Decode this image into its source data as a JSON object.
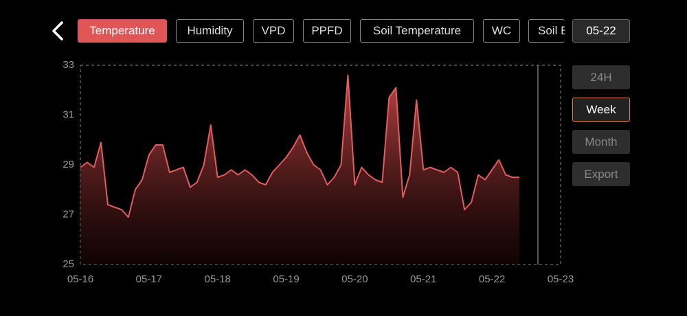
{
  "header": {
    "tabs": [
      "Temperature",
      "Humidity",
      "VPD",
      "PPFD",
      "Soil Temperature",
      "WC",
      "Soil E"
    ],
    "date": "05-22"
  },
  "range_buttons": [
    "24H",
    "Week",
    "Month",
    "Export"
  ],
  "chart_data": {
    "type": "area",
    "color": "#e35d5d",
    "grid": false,
    "x": [
      0,
      0.1,
      0.2,
      0.3,
      0.4,
      0.5,
      0.6,
      0.7,
      0.8,
      0.9,
      1,
      1.1,
      1.2,
      1.3,
      1.4,
      1.5,
      1.6,
      1.7,
      1.8,
      1.9,
      2,
      2.1,
      2.2,
      2.3,
      2.4,
      2.5,
      2.6,
      2.7,
      2.8,
      2.9,
      3,
      3.1,
      3.2,
      3.3,
      3.4,
      3.5,
      3.6,
      3.7,
      3.8,
      3.9,
      4,
      4.1,
      4.2,
      4.3,
      4.4,
      4.5,
      4.6,
      4.7,
      4.8,
      4.9,
      5,
      5.1,
      5.2,
      5.3,
      5.4,
      5.5,
      5.6,
      5.7,
      5.8,
      5.9,
      6,
      6.1,
      6.2,
      6.3,
      6.4
    ],
    "values": [
      28.9,
      29.1,
      28.9,
      29.9,
      27.4,
      27.3,
      27.2,
      26.9,
      28.0,
      28.4,
      29.4,
      29.8,
      29.8,
      28.7,
      28.8,
      28.9,
      28.1,
      28.3,
      29.0,
      30.6,
      28.5,
      28.6,
      28.8,
      28.6,
      28.8,
      28.6,
      28.3,
      28.2,
      28.7,
      29.0,
      29.3,
      29.7,
      30.2,
      29.5,
      29.0,
      28.8,
      28.2,
      28.5,
      29.0,
      32.6,
      28.2,
      28.9,
      28.6,
      28.4,
      28.3,
      31.7,
      32.1,
      27.7,
      28.6,
      31.6,
      28.8,
      28.9,
      28.8,
      28.7,
      28.9,
      28.7,
      27.2,
      27.5,
      28.6,
      28.4,
      28.8,
      29.2,
      28.6,
      28.5,
      28.5
    ],
    "xlim": [
      0,
      7
    ],
    "xticks": [
      {
        "value": 0,
        "label": "05-16"
      },
      {
        "value": 1,
        "label": "05-17"
      },
      {
        "value": 2,
        "label": "05-18"
      },
      {
        "value": 3,
        "label": "05-19"
      },
      {
        "value": 4,
        "label": "05-20"
      },
      {
        "value": 5,
        "label": "05-21"
      },
      {
        "value": 6,
        "label": "05-22"
      },
      {
        "value": 7,
        "label": "05-23"
      }
    ],
    "ylim": [
      25,
      33
    ],
    "yticks": [
      25,
      27,
      29,
      31,
      33
    ]
  }
}
